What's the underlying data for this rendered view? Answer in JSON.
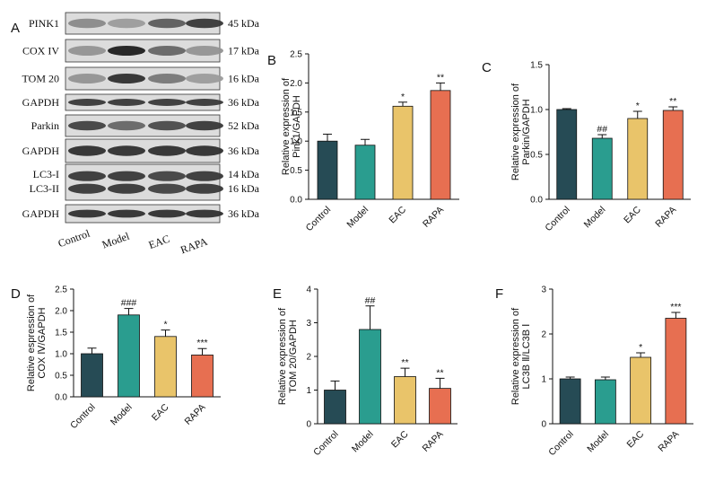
{
  "figure": {
    "panel_a": {
      "letter": "A",
      "strips": [
        {
          "protein": "PINK1",
          "size": "45 kDa",
          "intensities": [
            0.35,
            0.25,
            0.6,
            0.8
          ]
        },
        {
          "protein": "COX IV",
          "size": "17 kDa",
          "intensities": [
            0.3,
            0.95,
            0.55,
            0.3
          ]
        },
        {
          "protein": "TOM 20",
          "size": "16 kDa",
          "intensities": [
            0.3,
            0.85,
            0.45,
            0.25
          ]
        },
        {
          "protein": "GAPDH",
          "size": "36 kDa",
          "intensities": [
            0.8,
            0.8,
            0.8,
            0.8
          ]
        },
        {
          "protein": "Parkin",
          "size": "52 kDa",
          "intensities": [
            0.75,
            0.55,
            0.7,
            0.8
          ]
        },
        {
          "protein": "GAPDH",
          "size": "36 kDa",
          "intensities": [
            0.85,
            0.85,
            0.85,
            0.85
          ]
        },
        {
          "protein": "LC3-I",
          "protein2": "LC3-II",
          "size": "14 kDa",
          "size2": "16 kDa",
          "intensities": [
            0.8,
            0.8,
            0.75,
            0.8
          ]
        },
        {
          "protein": "GAPDH",
          "size": "36 kDa",
          "intensities": [
            0.85,
            0.85,
            0.85,
            0.85
          ]
        }
      ],
      "lanes": [
        "Control",
        "Model",
        "EAC",
        "RAPA"
      ]
    },
    "colors": {
      "Control": "#264b55",
      "Model": "#2a9d8f",
      "EAC": "#e9c46a",
      "RAPA": "#e76f51"
    }
  },
  "chart_data": [
    {
      "panel": "B",
      "type": "bar",
      "categories": [
        "Control",
        "Model",
        "EAC",
        "RAPA"
      ],
      "values": [
        1.0,
        0.93,
        1.6,
        1.87
      ],
      "errors": [
        0.12,
        0.1,
        0.07,
        0.13
      ],
      "significance": [
        "",
        "",
        "*",
        "**"
      ],
      "ylabel": [
        "Relative expression of",
        "Pink1/GAPDH"
      ],
      "ylim": [
        0,
        2.5
      ],
      "yticks": [
        0,
        0.5,
        1,
        1.5,
        2,
        2.5
      ],
      "ytick_labels": [
        "0.0",
        "0.5",
        "1.0",
        "1.5",
        "2.0",
        "2.5"
      ]
    },
    {
      "panel": "C",
      "type": "bar",
      "categories": [
        "Control",
        "Model",
        "EAC",
        "RAPA"
      ],
      "values": [
        1.0,
        0.68,
        0.9,
        0.99
      ],
      "errors": [
        0.01,
        0.04,
        0.08,
        0.04
      ],
      "significance": [
        "",
        "##",
        "*",
        "**"
      ],
      "ylabel": [
        "Relative expression of",
        "Parkin/GAPDH"
      ],
      "ylim": [
        0,
        1.5
      ],
      "yticks": [
        0,
        0.5,
        1,
        1.5
      ],
      "ytick_labels": [
        "0.0",
        "0.5",
        "1.0",
        "1.5"
      ]
    },
    {
      "panel": "D",
      "type": "bar",
      "categories": [
        "Control",
        "Model",
        "EAC",
        "RAPA"
      ],
      "values": [
        1.0,
        1.9,
        1.4,
        0.97
      ],
      "errors": [
        0.13,
        0.15,
        0.15,
        0.15
      ],
      "significance": [
        "",
        "###",
        "*",
        "***"
      ],
      "ylabel": [
        "Relative espression of",
        "COX Ⅳ/GAPDH"
      ],
      "ylim": [
        0,
        2.5
      ],
      "yticks": [
        0,
        0.5,
        1,
        1.5,
        2,
        2.5
      ],
      "ytick_labels": [
        "0.0",
        "0.5",
        "1.0",
        "1.5",
        "2.0",
        "2.5"
      ]
    },
    {
      "panel": "E",
      "type": "bar",
      "categories": [
        "Control",
        "Model",
        "EAC",
        "RAPA"
      ],
      "values": [
        1.0,
        2.8,
        1.4,
        1.05
      ],
      "errors": [
        0.27,
        0.7,
        0.25,
        0.3
      ],
      "significance": [
        "",
        "##",
        "**",
        "**"
      ],
      "ylabel": [
        "Relative expression of",
        "TOM 20/GAPDH"
      ],
      "ylim": [
        0,
        4
      ],
      "yticks": [
        0,
        1,
        2,
        3,
        4
      ],
      "ytick_labels": [
        "0",
        "1",
        "2",
        "3",
        "4"
      ]
    },
    {
      "panel": "F",
      "type": "bar",
      "categories": [
        "Control",
        "Model",
        "EAC",
        "RAPA"
      ],
      "values": [
        1.0,
        0.98,
        1.48,
        2.35
      ],
      "errors": [
        0.04,
        0.06,
        0.1,
        0.13
      ],
      "significance": [
        "",
        "",
        "*",
        "***"
      ],
      "ylabel": [
        "Relative expression of",
        "LC3B Ⅱ/LC3B Ⅰ"
      ],
      "ylim": [
        0,
        3
      ],
      "yticks": [
        0,
        1,
        2,
        3
      ],
      "ytick_labels": [
        "0",
        "1",
        "2",
        "3"
      ]
    }
  ]
}
